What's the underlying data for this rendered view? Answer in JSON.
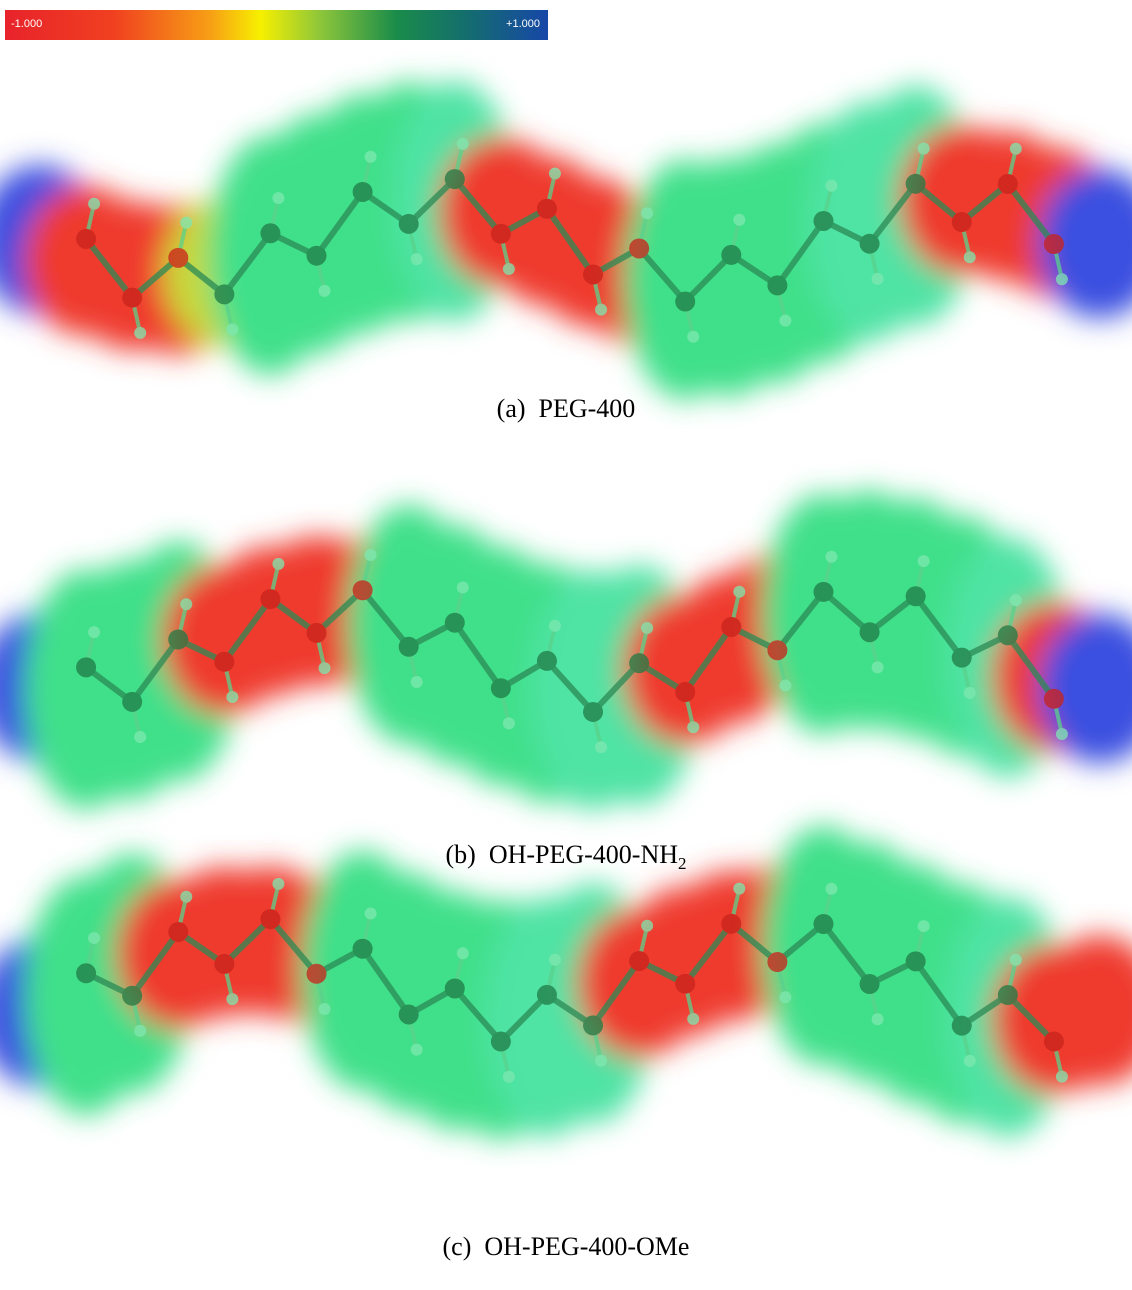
{
  "colorbar": {
    "min_label": "-1.000",
    "max_label": "+1.000"
  },
  "panels": [
    {
      "label": "(a)",
      "name": "PEG-400"
    },
    {
      "label": "(b)",
      "name": "OH-PEG-400-NH",
      "subscript": "2"
    },
    {
      "label": "(c)",
      "name": "OH-PEG-400-OMe"
    }
  ]
}
